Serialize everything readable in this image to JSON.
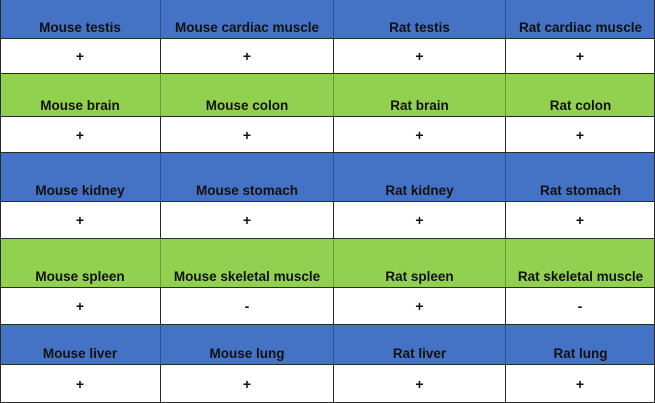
{
  "colors": {
    "header_blue": "#4472c4",
    "header_green": "#92d050",
    "value_bg": "#ffffff"
  },
  "rows": [
    {
      "color": "blue",
      "headers": [
        "Mouse testis",
        "Mouse cardiac muscle",
        "Rat testis",
        "Rat cardiac muscle"
      ],
      "values": [
        "+",
        "+",
        "+",
        "+"
      ]
    },
    {
      "color": "green",
      "headers": [
        "Mouse brain",
        "Mouse colon",
        "Rat brain",
        "Rat colon"
      ],
      "values": [
        "+",
        "+",
        "+",
        "+"
      ]
    },
    {
      "color": "blue",
      "headers": [
        "Mouse kidney",
        "Mouse stomach",
        "Rat kidney",
        "Rat stomach"
      ],
      "values": [
        "+",
        "+",
        "+",
        "+"
      ]
    },
    {
      "color": "green",
      "headers": [
        "Mouse spleen",
        "Mouse skeletal muscle",
        "Rat spleen",
        "Rat skeletal muscle"
      ],
      "values": [
        "+",
        "-",
        "+",
        "-"
      ]
    },
    {
      "color": "blue",
      "headers": [
        "Mouse liver",
        "Mouse lung",
        "Rat liver",
        "Rat lung"
      ],
      "values": [
        "+",
        "+",
        "+",
        "+"
      ]
    }
  ]
}
